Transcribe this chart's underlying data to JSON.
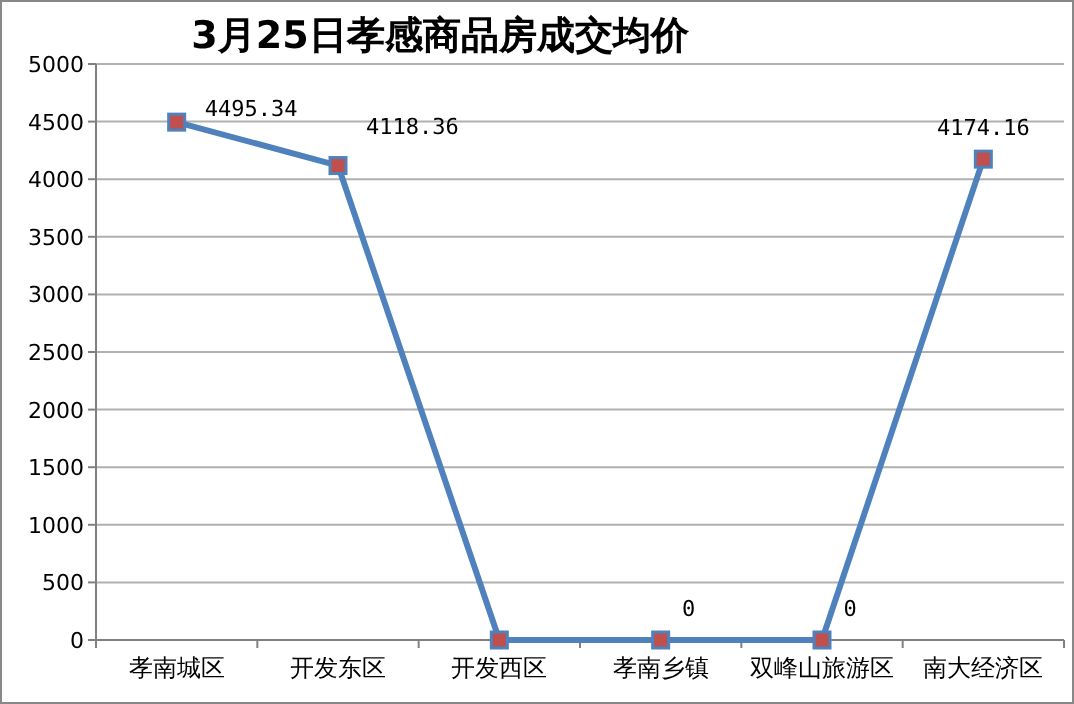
{
  "chart_data": {
    "type": "line",
    "title": "3月25日孝感商品房成交均价",
    "categories": [
      "孝南城区",
      "开发东区",
      "开发西区",
      "孝南乡镇",
      "双峰山旅游区",
      "南大经济区"
    ],
    "series": [
      {
        "color": "#4f81bd",
        "values": [
          4495.34,
          4118.36,
          0,
          0,
          0,
          4174.16
        ],
        "value_labels": [
          "4495.34",
          "4118.36",
          null,
          "0",
          "0",
          "4174.16"
        ]
      }
    ],
    "ylim": [
      0,
      5000
    ],
    "yticks": [
      0,
      500,
      1000,
      1500,
      2000,
      2500,
      3000,
      3500,
      4000,
      4500,
      5000
    ],
    "grid": "y",
    "marker": "square",
    "line_style": "solid"
  }
}
